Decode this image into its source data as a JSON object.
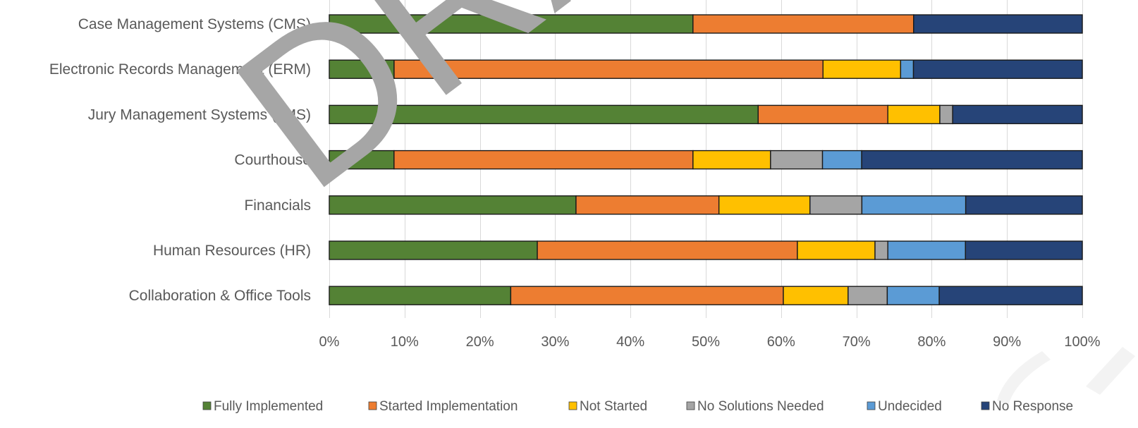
{
  "chart_data": {
    "type": "bar",
    "orientation": "horizontal",
    "stacked": "percent",
    "title": "",
    "xlabel": "",
    "ylabel": "",
    "xlim": [
      0,
      100
    ],
    "x_ticks": [
      "0%",
      "10%",
      "20%",
      "30%",
      "40%",
      "50%",
      "60%",
      "70%",
      "80%",
      "90%",
      "100%"
    ],
    "grid": "vertical",
    "legend_position": "bottom",
    "categories": [
      "Case Management Systems (CMS)",
      "Electronic Records Management (ERM)",
      "Jury Management Systems (JMS)",
      "Courthouse",
      "Financials",
      "Human Resources (HR)",
      "Collaboration & Office Tools"
    ],
    "series": [
      {
        "name": "Fully Implemented",
        "color": "#548235",
        "values": [
          48.3,
          8.6,
          56.9,
          8.6,
          32.8,
          27.6,
          24.1
        ]
      },
      {
        "name": "Started Implementation",
        "color": "#ED7D31",
        "values": [
          29.3,
          56.9,
          17.2,
          39.7,
          19.0,
          34.5,
          36.2
        ]
      },
      {
        "name": "Not Started",
        "color": "#FFC000",
        "values": [
          0,
          10.3,
          6.9,
          10.3,
          12.1,
          10.3,
          8.6
        ]
      },
      {
        "name": "No Solutions Needed",
        "color": "#A5A5A5",
        "values": [
          0,
          0,
          1.7,
          6.9,
          6.9,
          1.7,
          5.2
        ]
      },
      {
        "name": "Undecided",
        "color": "#5B9BD5",
        "values": [
          0,
          1.7,
          0,
          5.2,
          13.8,
          10.3,
          6.9
        ]
      },
      {
        "name": "No Response",
        "color": "#264478",
        "values": [
          22.4,
          22.4,
          17.2,
          29.3,
          15.5,
          15.5,
          19.0
        ]
      }
    ]
  },
  "watermark": {
    "text": "DRAFT",
    "color": "#a6a6a6"
  }
}
